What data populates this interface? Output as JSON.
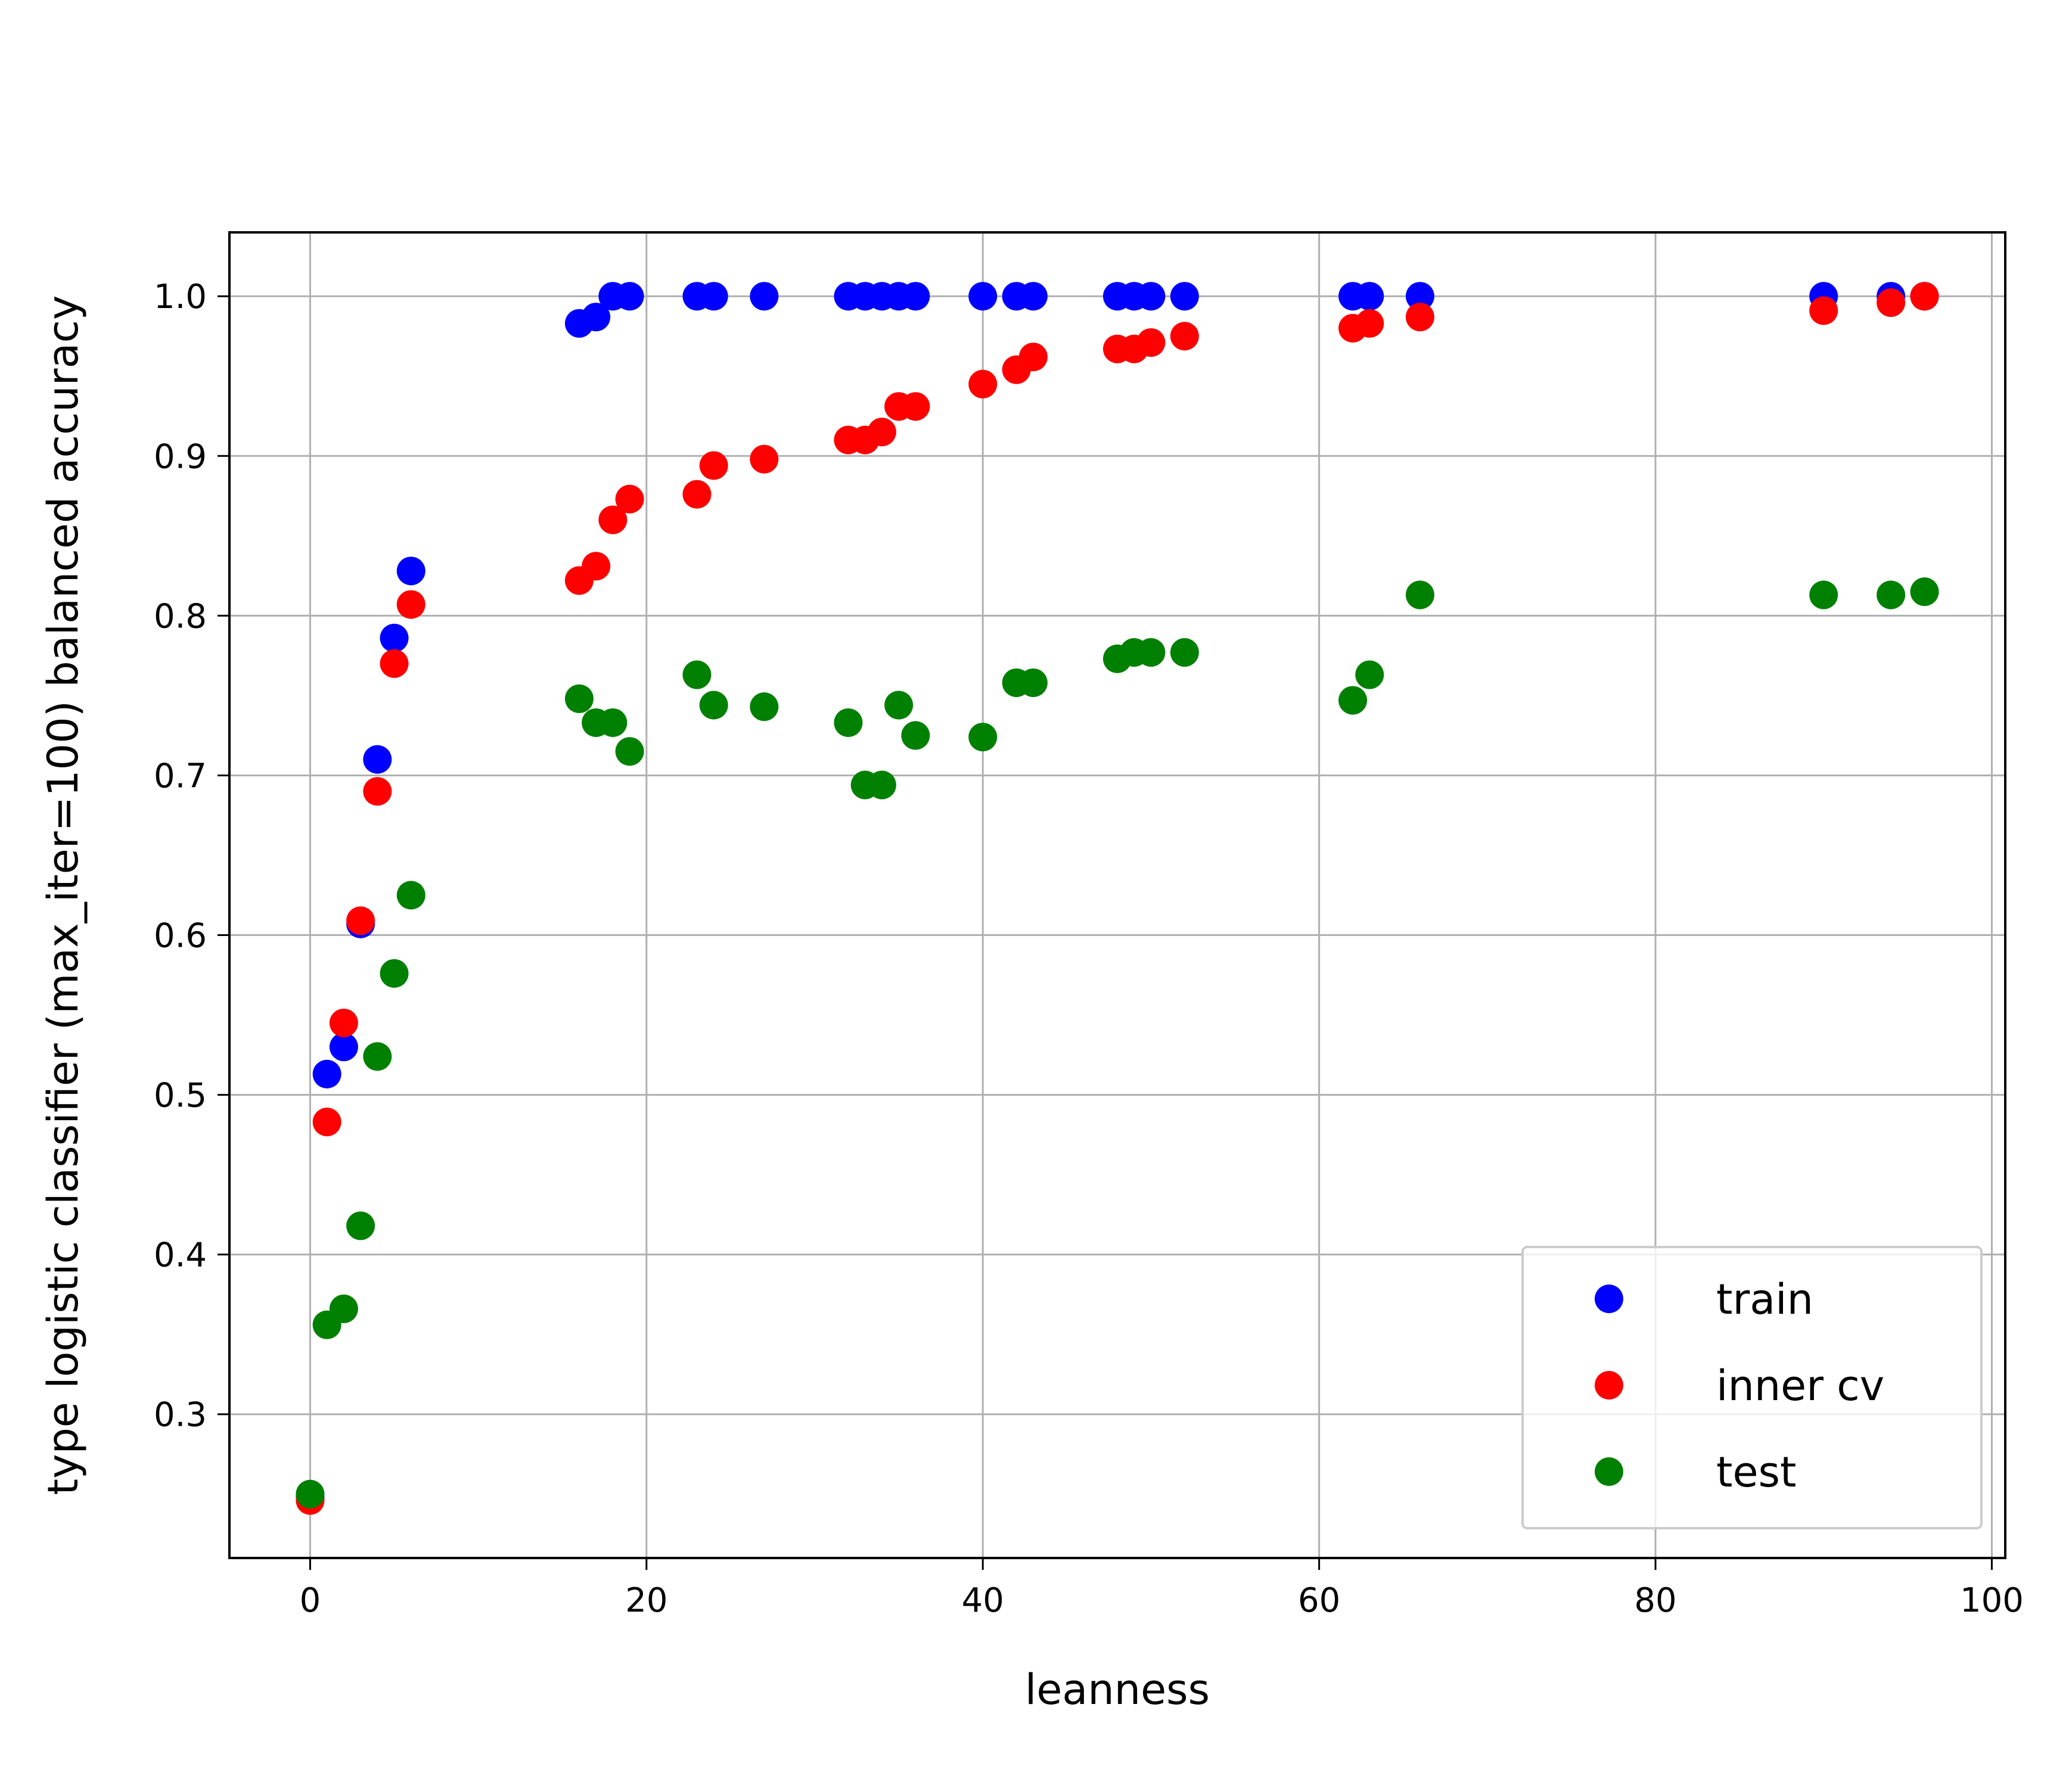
{
  "chart_data": {
    "type": "scatter",
    "title": "",
    "xlabel": "leanness",
    "ylabel": "type logistic classifier (max_iter=100) balanced accuracy",
    "xlim": [
      -4.8,
      100.8
    ],
    "ylim": [
      0.21,
      1.04
    ],
    "xticks": [
      0,
      20,
      40,
      60,
      80,
      100
    ],
    "yticks": [
      0.3,
      0.4,
      0.5,
      0.6,
      0.7,
      0.8,
      0.9,
      1.0
    ],
    "xtick_labels": [
      "0",
      "20",
      "40",
      "60",
      "80",
      "100"
    ],
    "ytick_labels": [
      "0.3",
      "0.4",
      "0.5",
      "0.6",
      "0.7",
      "0.8",
      "0.9",
      "1.0"
    ],
    "grid": true,
    "legend_position": "lower-right",
    "x": [
      0,
      1,
      2,
      3,
      4,
      5,
      6,
      16,
      17,
      18,
      19,
      23,
      24,
      27,
      32,
      33,
      34,
      35,
      36,
      40,
      42,
      43,
      48,
      49,
      50,
      52,
      62,
      63,
      66,
      90,
      94,
      96
    ],
    "series": [
      {
        "name": "train",
        "color": "#0000ff",
        "values": [
          0.248,
          0.513,
          0.53,
          0.607,
          0.71,
          0.786,
          0.828,
          0.983,
          0.987,
          1.0,
          1.0,
          1.0,
          1.0,
          1.0,
          1.0,
          1.0,
          1.0,
          1.0,
          1.0,
          1.0,
          1.0,
          1.0,
          1.0,
          1.0,
          1.0,
          1.0,
          1.0,
          1.0,
          1.0,
          1.0,
          1.0,
          1.0
        ]
      },
      {
        "name": "inner cv",
        "color": "#ff0000",
        "values": [
          0.246,
          0.483,
          0.545,
          0.609,
          0.69,
          0.77,
          0.807,
          0.822,
          0.831,
          0.86,
          0.873,
          0.876,
          0.894,
          0.898,
          0.91,
          0.91,
          0.915,
          0.931,
          0.931,
          0.945,
          0.954,
          0.962,
          0.967,
          0.967,
          0.971,
          0.975,
          0.98,
          0.983,
          0.987,
          0.991,
          0.996,
          1.0
        ]
      },
      {
        "name": "test",
        "color": "#008000",
        "values": [
          0.25,
          0.356,
          0.366,
          0.418,
          0.524,
          0.576,
          0.625,
          0.748,
          0.733,
          0.733,
          0.715,
          0.763,
          0.744,
          0.743,
          0.733,
          0.694,
          0.694,
          0.744,
          0.725,
          0.724,
          0.758,
          0.758,
          0.773,
          0.777,
          0.777,
          0.777,
          0.747,
          0.763,
          0.813,
          0.813,
          0.813,
          0.815
        ]
      }
    ]
  }
}
